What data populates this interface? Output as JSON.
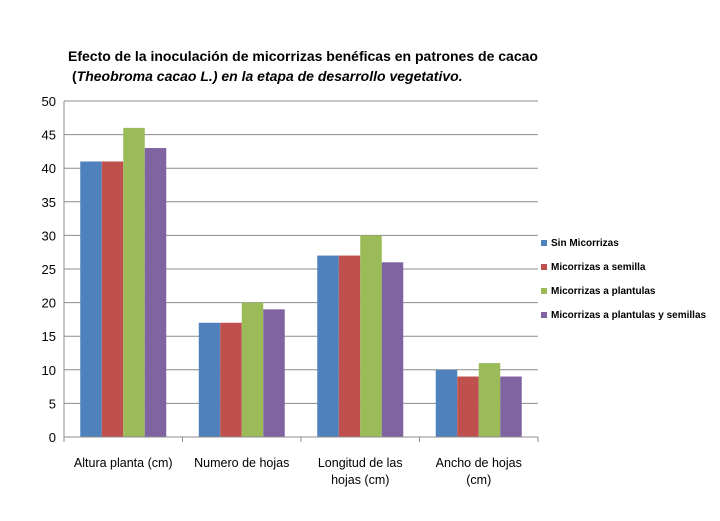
{
  "chart_data": {
    "type": "bar",
    "title_line1": "Efecto de la inoculación de micorrizas benéficas  en patrones de cacao",
    "title_line2_pre": "(",
    "title_line2_italic": "Theobroma  cacao L.",
    "title_line2_post": ") en la etapa de desarrollo  vegetativo.",
    "categories": [
      [
        "Altura planta (cm)"
      ],
      [
        "Numero de hojas"
      ],
      [
        "Longitud de las",
        "hojas (cm)"
      ],
      [
        "Ancho de hojas",
        "(cm)"
      ]
    ],
    "series": [
      {
        "name": "Sin Micorrizas",
        "color": "#4f81bd",
        "values": [
          41,
          17,
          27,
          10
        ]
      },
      {
        "name": "Micorrizas a semilla",
        "color": "#c0504d",
        "values": [
          41,
          17,
          27,
          9
        ]
      },
      {
        "name": "Micorrizas a plantulas",
        "color": "#9bbb59",
        "values": [
          46,
          20,
          30,
          11
        ]
      },
      {
        "name": "Micorrizas a plantulas y semillas",
        "color": "#8064a2",
        "values": [
          43,
          19,
          26,
          9
        ]
      }
    ],
    "ylim": [
      0,
      50
    ],
    "yticks": [
      0,
      5,
      10,
      15,
      20,
      25,
      30,
      35,
      40,
      45,
      50
    ],
    "grid": true,
    "legend_position": "right"
  }
}
